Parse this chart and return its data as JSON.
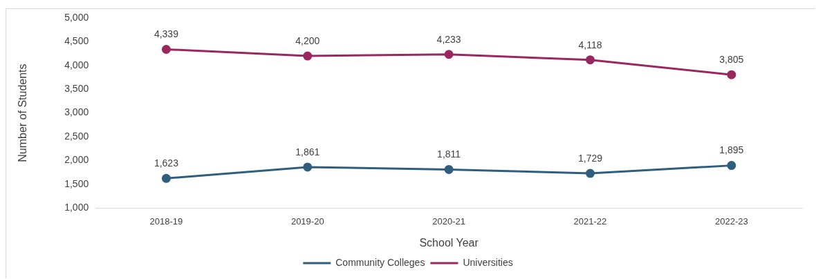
{
  "chart_data": {
    "type": "line",
    "xlabel": "School Year",
    "ylabel": "Number of Students",
    "categories": [
      "2018-19",
      "2019-20",
      "2020-21",
      "2021-22",
      "2022-23"
    ],
    "series": [
      {
        "name": "Community Colleges",
        "color": "#2f5f7d",
        "values": [
          1623,
          1861,
          1811,
          1729,
          1895
        ],
        "value_labels": [
          "1,623",
          "1,861",
          "1,811",
          "1,729",
          "1,895"
        ]
      },
      {
        "name": "Universities",
        "color": "#98285f",
        "values": [
          4339,
          4200,
          4233,
          4118,
          3805
        ],
        "value_labels": [
          "4,339",
          "4,200",
          "4,233",
          "4,118",
          "3,805"
        ]
      }
    ],
    "ylim": [
      1000,
      5000
    ],
    "yticks": [
      {
        "value": 1000,
        "label": "1,000"
      },
      {
        "value": 1500,
        "label": "1,500"
      },
      {
        "value": 2000,
        "label": "2,000"
      },
      {
        "value": 2500,
        "label": "2,500"
      },
      {
        "value": 3000,
        "label": "3,000"
      },
      {
        "value": 3500,
        "label": "3,500"
      },
      {
        "value": 4000,
        "label": "4,000"
      },
      {
        "value": 4500,
        "label": "4,500"
      },
      {
        "value": 5000,
        "label": "5,000"
      }
    ],
    "grid": false,
    "legend": "bottom",
    "marker": "circle",
    "line_style": "solid"
  }
}
